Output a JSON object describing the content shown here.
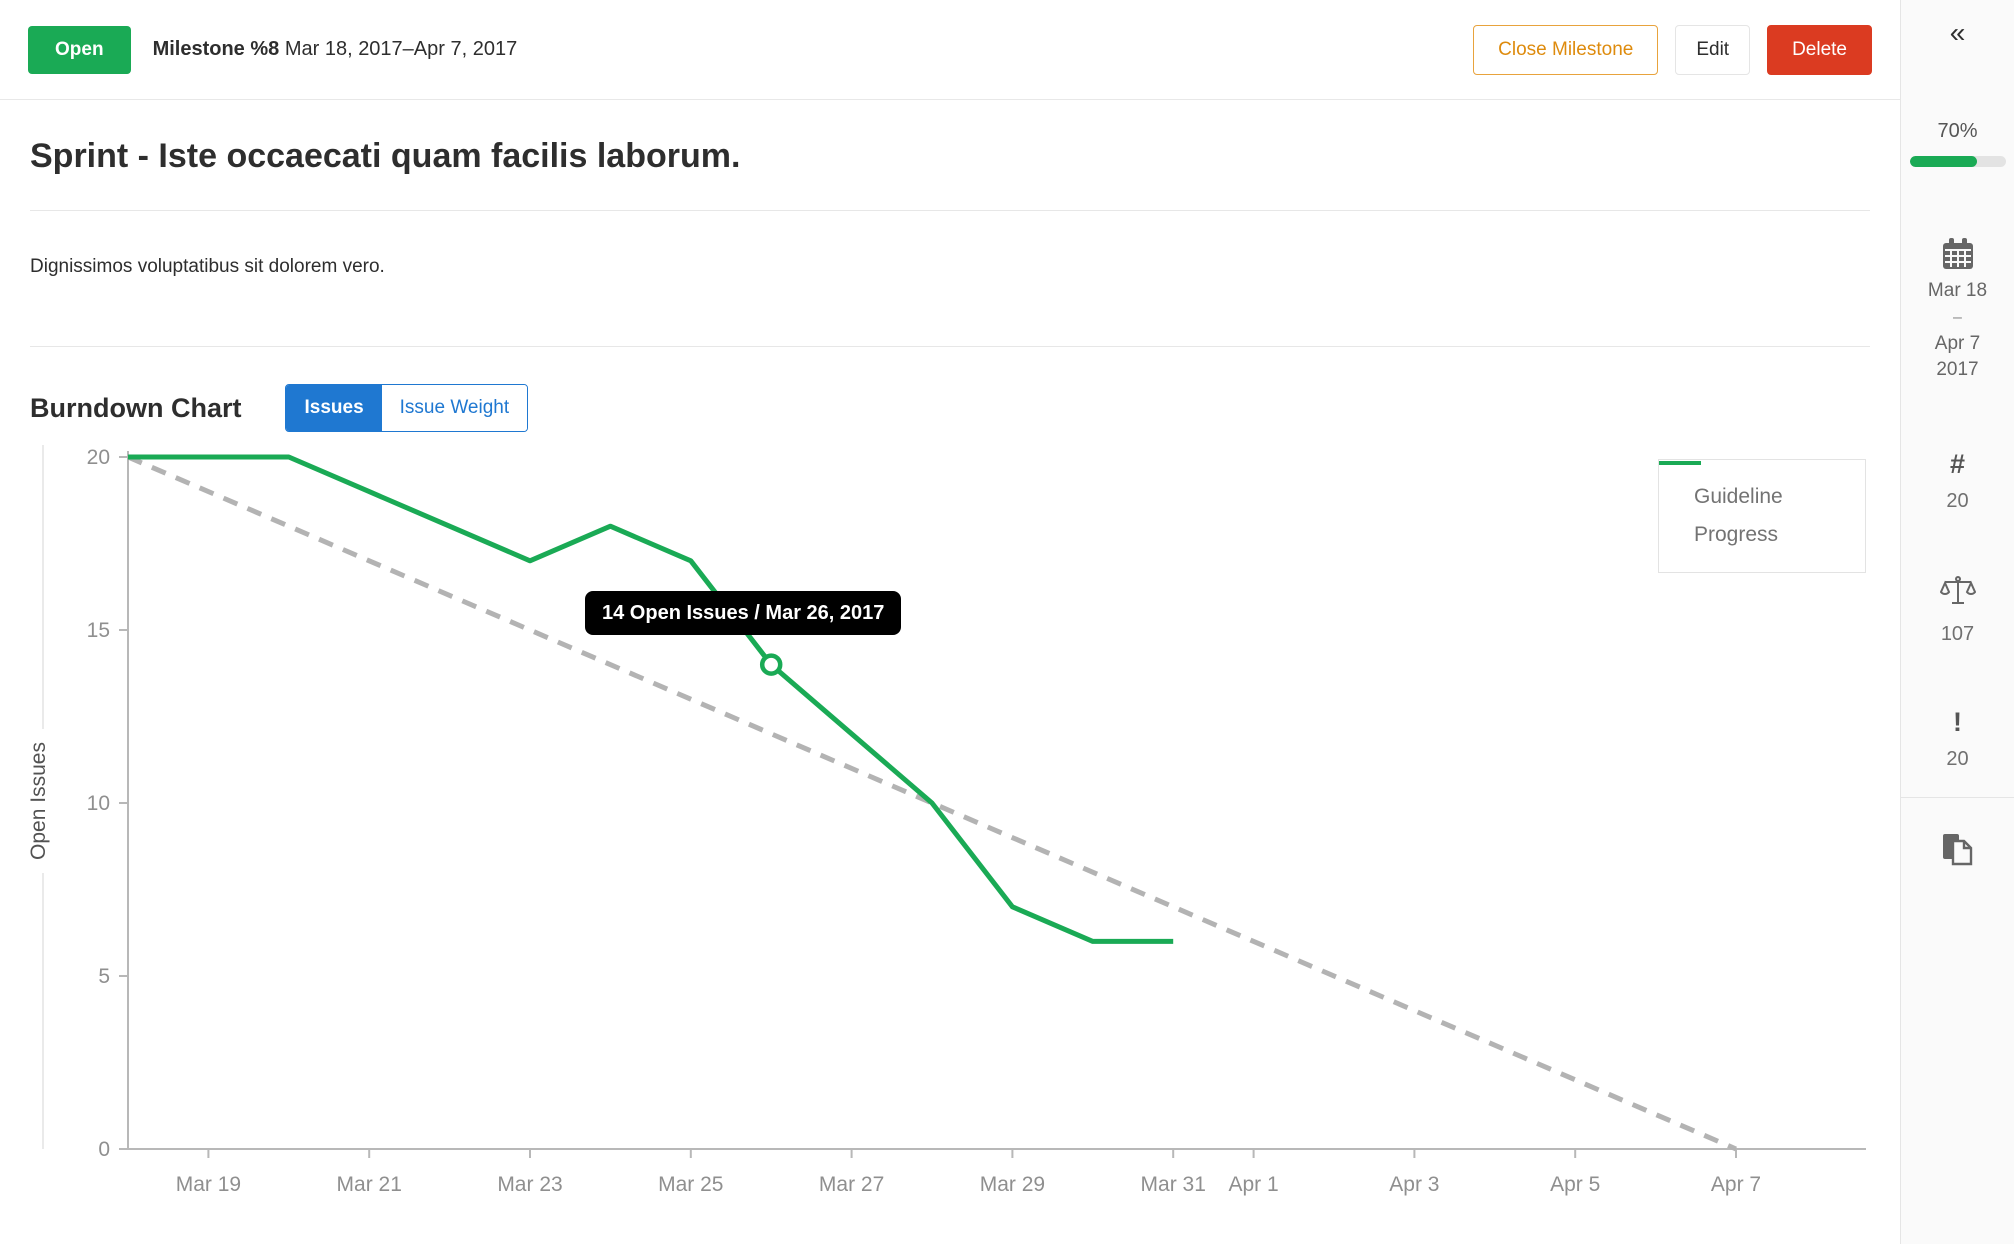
{
  "header": {
    "status_label": "Open",
    "title": "Milestone %8",
    "date_range": "Mar 18, 2017–Apr 7, 2017",
    "buttons": {
      "close": "Close Milestone",
      "edit": "Edit",
      "delete": "Delete"
    }
  },
  "page": {
    "title": "Sprint - Iste occaecati quam facilis laborum.",
    "description": "Dignissimos voluptatibus sit dolorem vero."
  },
  "burndown": {
    "heading": "Burndown Chart",
    "toggle": {
      "issues_label": "Issues",
      "weight_label": "Issue Weight",
      "active": "Issues"
    }
  },
  "sidebar": {
    "collapse_icon": "«",
    "progress_percent": "70%",
    "dates": {
      "start": "Mar 18",
      "separator": "–",
      "end": "Apr 7",
      "year": "2017"
    },
    "reference_count": "20",
    "total_weight": "107",
    "issue_count": "20"
  },
  "colors": {
    "green": "#1aaa55",
    "blue": "#1f78d1",
    "orange": "#de8b0d",
    "red": "#db3b21",
    "guideline_gray": "#b3b3b3",
    "tooltip_bg": "#000000"
  },
  "chart_data": {
    "type": "line",
    "title": "Burndown Chart",
    "xlabel": "",
    "ylabel": "Open Issues",
    "ylim": [
      0,
      20
    ],
    "x_range": [
      "Mar 18, 2017",
      "Apr 7, 2017"
    ],
    "grid": false,
    "legend_position": "top-right",
    "y_ticks": [
      0,
      5,
      10,
      15,
      20
    ],
    "x_tick_labels": [
      {
        "day": 1,
        "label": "Mar 19"
      },
      {
        "day": 3,
        "label": "Mar 21"
      },
      {
        "day": 5,
        "label": "Mar 23"
      },
      {
        "day": 7,
        "label": "Mar 25"
      },
      {
        "day": 9,
        "label": "Mar 27"
      },
      {
        "day": 11,
        "label": "Mar 29"
      },
      {
        "day": 13,
        "label": "Mar 31"
      },
      {
        "day": 14,
        "label": "Apr 1"
      },
      {
        "day": 16,
        "label": "Apr 3"
      },
      {
        "day": 18,
        "label": "Apr 5"
      },
      {
        "day": 20,
        "label": "Apr 7"
      }
    ],
    "series": [
      {
        "name": "Guideline",
        "style": "dashed",
        "color": "#b3b3b3",
        "points": [
          {
            "day": 0,
            "date": "Mar 18",
            "value": 20
          },
          {
            "day": 20,
            "date": "Apr 7",
            "value": 0
          }
        ]
      },
      {
        "name": "Progress",
        "style": "solid",
        "color": "#1aaa55",
        "points": [
          {
            "day": 0,
            "date": "Mar 18",
            "value": 20
          },
          {
            "day": 1,
            "date": "Mar 19",
            "value": 20
          },
          {
            "day": 2,
            "date": "Mar 20",
            "value": 20
          },
          {
            "day": 3,
            "date": "Mar 21",
            "value": 19
          },
          {
            "day": 4,
            "date": "Mar 22",
            "value": 18
          },
          {
            "day": 5,
            "date": "Mar 23",
            "value": 17
          },
          {
            "day": 6,
            "date": "Mar 24",
            "value": 18
          },
          {
            "day": 7,
            "date": "Mar 25",
            "value": 17
          },
          {
            "day": 8,
            "date": "Mar 26",
            "value": 14
          },
          {
            "day": 9,
            "date": "Mar 27",
            "value": 12
          },
          {
            "day": 10,
            "date": "Mar 28",
            "value": 10
          },
          {
            "day": 11,
            "date": "Mar 29",
            "value": 7
          },
          {
            "day": 12,
            "date": "Mar 30",
            "value": 6
          },
          {
            "day": 13,
            "date": "Mar 31",
            "value": 6
          }
        ]
      }
    ],
    "highlight": {
      "day": 8,
      "value": 14,
      "date": "Mar 26, 2017"
    },
    "tooltip": "14 Open Issues / Mar 26, 2017"
  }
}
